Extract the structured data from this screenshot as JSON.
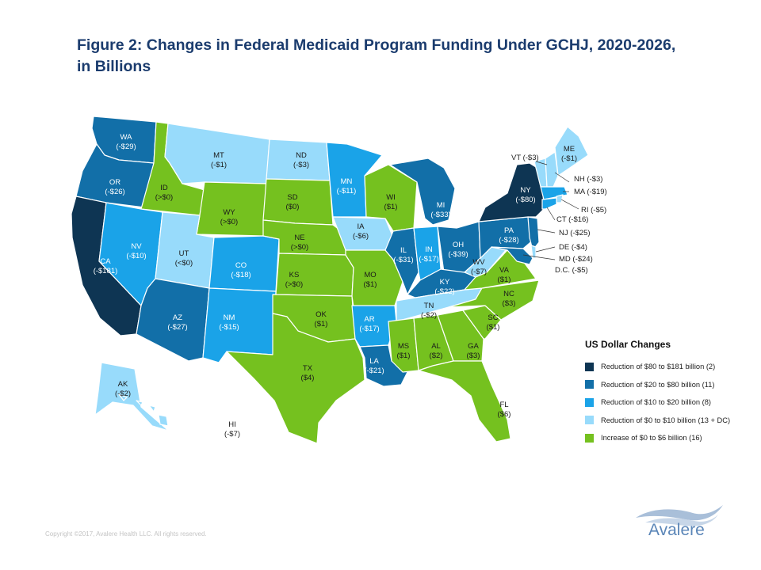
{
  "title": "Figure 2: Changes in Federal Medicaid Program Funding Under GCHJ, 2020-2026, in Billions",
  "colors": {
    "cat1": "#0e3553",
    "cat2": "#126fa8",
    "cat3": "#1aa3e8",
    "cat4": "#98dbfb",
    "cat5": "#75c11f",
    "label_dark_bg": "#ffffff",
    "label_light_bg": "#1a1a1a"
  },
  "legend": {
    "title": "US Dollar Changes",
    "items": [
      {
        "label": "Reduction of $80 to $181 billion (2)",
        "category": "cat1"
      },
      {
        "label": "Reduction of $20 to $80 billion (11)",
        "category": "cat2"
      },
      {
        "label": "Reduction of $10 to $20 billion (8)",
        "category": "cat3"
      },
      {
        "label": "Reduction of $0 to $10 billion (13 + DC)",
        "category": "cat4"
      },
      {
        "label": "Increase of $0 to $6 billion (16)",
        "category": "cat5"
      }
    ]
  },
  "states": [
    {
      "abbr": "WA",
      "value": "(-$29)",
      "category": "cat2"
    },
    {
      "abbr": "OR",
      "value": "(-$26)",
      "category": "cat2"
    },
    {
      "abbr": "CA",
      "value": "(-$181)",
      "category": "cat1"
    },
    {
      "abbr": "ID",
      "value": "(>$0)",
      "category": "cat5"
    },
    {
      "abbr": "NV",
      "value": "(-$10)",
      "category": "cat3"
    },
    {
      "abbr": "MT",
      "value": "(-$1)",
      "category": "cat4"
    },
    {
      "abbr": "WY",
      "value": "(>$0)",
      "category": "cat5"
    },
    {
      "abbr": "UT",
      "value": "(<$0)",
      "category": "cat4"
    },
    {
      "abbr": "AZ",
      "value": "(-$27)",
      "category": "cat2"
    },
    {
      "abbr": "CO",
      "value": "(-$18)",
      "category": "cat3"
    },
    {
      "abbr": "NM",
      "value": "(-$15)",
      "category": "cat3"
    },
    {
      "abbr": "ND",
      "value": "(-$3)",
      "category": "cat4"
    },
    {
      "abbr": "SD",
      "value": "($0)",
      "category": "cat5"
    },
    {
      "abbr": "NE",
      "value": "(>$0)",
      "category": "cat5"
    },
    {
      "abbr": "KS",
      "value": "(>$0)",
      "category": "cat5"
    },
    {
      "abbr": "OK",
      "value": "($1)",
      "category": "cat5"
    },
    {
      "abbr": "TX",
      "value": "($4)",
      "category": "cat5"
    },
    {
      "abbr": "MN",
      "value": "(-$11)",
      "category": "cat3"
    },
    {
      "abbr": "IA",
      "value": "(-$6)",
      "category": "cat4"
    },
    {
      "abbr": "MO",
      "value": "($1)",
      "category": "cat5"
    },
    {
      "abbr": "AR",
      "value": "(-$17)",
      "category": "cat3"
    },
    {
      "abbr": "LA",
      "value": "(-$21)",
      "category": "cat2"
    },
    {
      "abbr": "WI",
      "value": "($1)",
      "category": "cat5"
    },
    {
      "abbr": "IL",
      "value": "(-$31)",
      "category": "cat2"
    },
    {
      "abbr": "MI",
      "value": "(-$33)",
      "category": "cat2"
    },
    {
      "abbr": "IN",
      "value": "(-$17)",
      "category": "cat3"
    },
    {
      "abbr": "OH",
      "value": "(-$39)",
      "category": "cat2"
    },
    {
      "abbr": "KY",
      "value": "(-$22)",
      "category": "cat2"
    },
    {
      "abbr": "TN",
      "value": "(-$2)",
      "category": "cat4"
    },
    {
      "abbr": "MS",
      "value": "($1)",
      "category": "cat5"
    },
    {
      "abbr": "AL",
      "value": "($2)",
      "category": "cat5"
    },
    {
      "abbr": "GA",
      "value": "($3)",
      "category": "cat5"
    },
    {
      "abbr": "FL",
      "value": "($6)",
      "category": "cat5"
    },
    {
      "abbr": "SC",
      "value": "($1)",
      "category": "cat5"
    },
    {
      "abbr": "NC",
      "value": "($3)",
      "category": "cat5"
    },
    {
      "abbr": "VA",
      "value": "($1)",
      "category": "cat5"
    },
    {
      "abbr": "WV",
      "value": "(-$7)",
      "category": "cat4"
    },
    {
      "abbr": "PA",
      "value": "(-$28)",
      "category": "cat2"
    },
    {
      "abbr": "NY",
      "value": "(-$80)",
      "category": "cat1"
    },
    {
      "abbr": "ME",
      "value": "(-$1)",
      "category": "cat4"
    },
    {
      "abbr": "AK",
      "value": "(-$2)",
      "category": "cat4"
    },
    {
      "abbr": "HI",
      "value": "(-$7)",
      "category": "cat4"
    }
  ],
  "small_states": [
    {
      "abbr": "VT",
      "value": "(-$3)",
      "category": "cat4"
    },
    {
      "abbr": "NH",
      "value": "(-$3)",
      "category": "cat4"
    },
    {
      "abbr": "MA",
      "value": "(-$19)",
      "category": "cat3"
    },
    {
      "abbr": "RI",
      "value": "(-$5)",
      "category": "cat4"
    },
    {
      "abbr": "CT",
      "value": "(-$16)",
      "category": "cat3"
    },
    {
      "abbr": "NJ",
      "value": "(-$25)",
      "category": "cat2"
    },
    {
      "abbr": "DE",
      "value": "(-$4)",
      "category": "cat4"
    },
    {
      "abbr": "MD",
      "value": "(-$24)",
      "category": "cat2"
    },
    {
      "abbr": "D.C.",
      "value": "(-$5)",
      "category": "cat4"
    }
  ],
  "copyright": "Copyright ©2017, Avalere Health LLC. All rights reserved.",
  "logo_text": "Avalere"
}
